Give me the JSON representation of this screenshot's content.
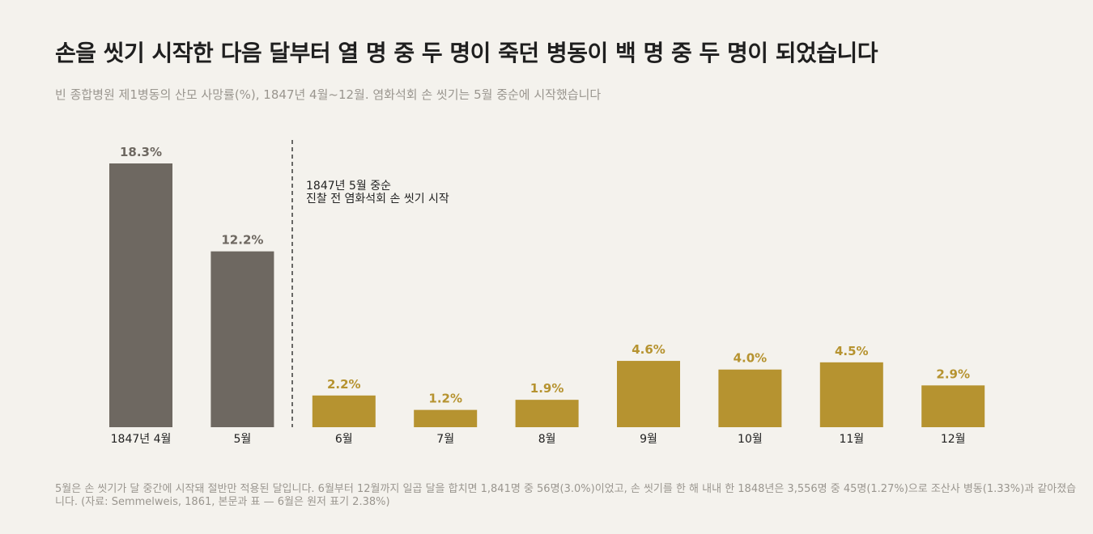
{
  "title": "손을 씻기 시작한 다음 달부터 열 명 중 두 명이 죽던 병동이 백 명 중 두 명이 되었습니다",
  "subtitle": "빈 종합병원 제1병동의 산모 사망률(%), 1847년 4월~12월. 염화석회 손 씻기는 5월 중순에 시작했습니다",
  "colors": {
    "before": "#6e6861",
    "after": "#b69330",
    "background": "#f4f2ed"
  },
  "chart_data": {
    "type": "bar",
    "categories": [
      "1847년 4월",
      "5월",
      "6월",
      "7월",
      "8월",
      "9월",
      "10월",
      "11월",
      "12월"
    ],
    "values": [
      18.3,
      12.2,
      2.2,
      1.2,
      1.9,
      4.6,
      4.0,
      4.5,
      2.9
    ],
    "value_labels": [
      "18.3%",
      "12.2%",
      "2.2%",
      "1.2%",
      "1.9%",
      "4.6%",
      "4.0%",
      "4.5%",
      "2.9%"
    ],
    "bar_colors": [
      "#6e6861",
      "#6e6861",
      "#b69330",
      "#b69330",
      "#b69330",
      "#b69330",
      "#b69330",
      "#b69330",
      "#b69330"
    ],
    "ylim": [
      0,
      18.3
    ],
    "grid": false,
    "annotation": {
      "lines": [
        "1847년 5월 중순",
        "진찰 전 염화석회 손 씻기 시작"
      ],
      "position": "between 5월 and 6월"
    }
  },
  "footnote": "5월은 손 씻기가 달 중간에 시작돼 절반만 적용된 달입니다. 6월부터 12월까지 일곱 달을 합치면 1,841명 중 56명(3.0%)이었고, 손 씻기를 한 해 내내 한 1848년은 3,556명 중 45명(1.27%)으로 조산사 병동(1.33%)과 같아졌습니다. (자료: Semmelweis, 1861, 본문과 표 — 6월은 원저 표기 2.38%)"
}
